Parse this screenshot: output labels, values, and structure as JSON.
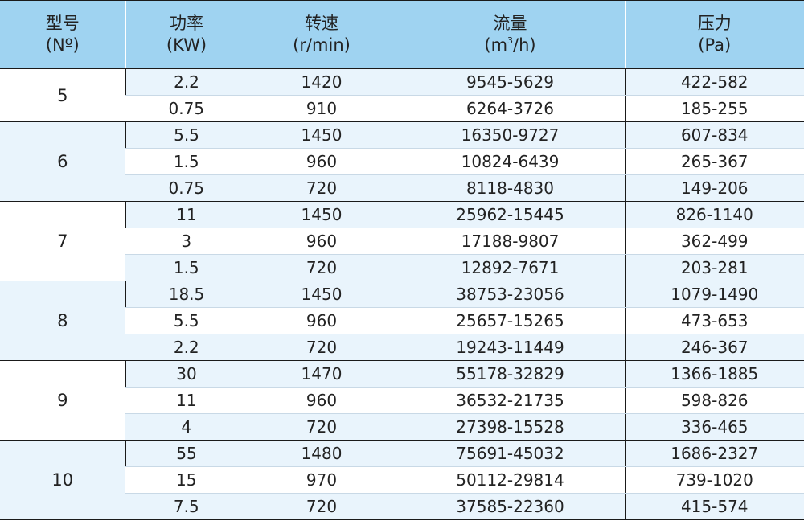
{
  "table": {
    "headers": [
      {
        "line1": "型号",
        "line2": "(Nº)"
      },
      {
        "line1": "功率",
        "line2": "(KW)"
      },
      {
        "line1": "转速",
        "line2": "(r/min)"
      },
      {
        "line1": "流量",
        "line2_a": "(m",
        "line2_sup": "3",
        "line2_b": "/h)"
      },
      {
        "line1": "压力",
        "line2": "(Pa)"
      }
    ],
    "groups": [
      {
        "model": "5",
        "rows": [
          {
            "power": "2.2",
            "speed": "1420",
            "flow": "9545-5629",
            "pressure": "422-582"
          },
          {
            "power": "0.75",
            "speed": "910",
            "flow": "6264-3726",
            "pressure": "185-255"
          }
        ]
      },
      {
        "model": "6",
        "rows": [
          {
            "power": "5.5",
            "speed": "1450",
            "flow": "16350-9727",
            "pressure": "607-834"
          },
          {
            "power": "1.5",
            "speed": "960",
            "flow": "10824-6439",
            "pressure": "265-367"
          },
          {
            "power": "0.75",
            "speed": "720",
            "flow": "8118-4830",
            "pressure": "149-206"
          }
        ]
      },
      {
        "model": "7",
        "rows": [
          {
            "power": "11",
            "speed": "1450",
            "flow": "25962-15445",
            "pressure": "826-1140"
          },
          {
            "power": "3",
            "speed": "960",
            "flow": "17188-9807",
            "pressure": "362-499"
          },
          {
            "power": "1.5",
            "speed": "720",
            "flow": "12892-7671",
            "pressure": "203-281"
          }
        ]
      },
      {
        "model": "8",
        "rows": [
          {
            "power": "18.5",
            "speed": "1450",
            "flow": "38753-23056",
            "pressure": "1079-1490"
          },
          {
            "power": "5.5",
            "speed": "960",
            "flow": "25657-15265",
            "pressure": "473-653"
          },
          {
            "power": "2.2",
            "speed": "720",
            "flow": "19243-11449",
            "pressure": "246-367"
          }
        ]
      },
      {
        "model": "9",
        "rows": [
          {
            "power": "30",
            "speed": "1470",
            "flow": "55178-32829",
            "pressure": "1366-1885"
          },
          {
            "power": "11",
            "speed": "960",
            "flow": "36532-21735",
            "pressure": "598-826"
          },
          {
            "power": "4",
            "speed": "720",
            "flow": "27398-15528",
            "pressure": "336-465"
          }
        ]
      },
      {
        "model": "10",
        "rows": [
          {
            "power": "55",
            "speed": "1480",
            "flow": "75691-45032",
            "pressure": "1686-2327"
          },
          {
            "power": "15",
            "speed": "970",
            "flow": "50112-29814",
            "pressure": "739-1020"
          },
          {
            "power": "7.5",
            "speed": "720",
            "flow": "37585-22360",
            "pressure": "415-574"
          }
        ]
      }
    ],
    "colors": {
      "header_bg": "#9fd3f1",
      "row_alt_bg": "#e9f4fc",
      "row_plain_bg": "#ffffff",
      "rule": "#1a1a1a"
    }
  }
}
